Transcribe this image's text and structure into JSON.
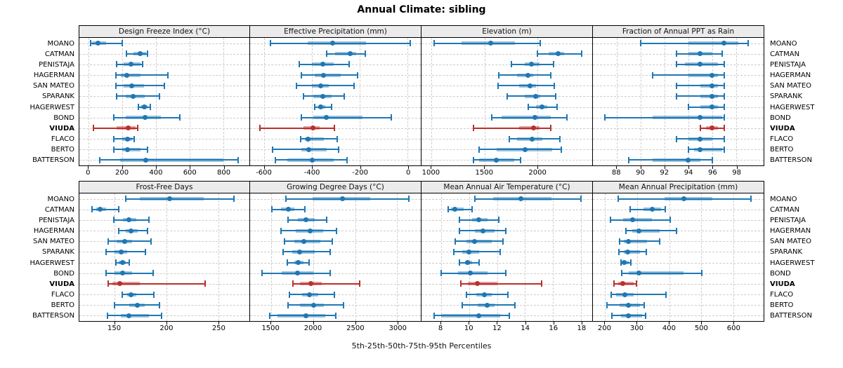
{
  "title": "Annual Climate: sibling",
  "caption": "5th-25th-50th-75th-95th Percentiles",
  "stations": [
    "MOANO",
    "CATMAN",
    "PENISTAJA",
    "HAGERMAN",
    "SAN MATEO",
    "SPARANK",
    "HAGERWEST",
    "BOND",
    "VIUDA",
    "FLACO",
    "BERTO",
    "BATTERSON"
  ],
  "highlight_station": "VIUDA",
  "colors": {
    "series_blue": "#1f77b4",
    "series_blue_band": "rgba(31,119,180,0.45)",
    "highlight_red": "#bb2f2c",
    "highlight_red_band": "rgba(187,47,44,0.45)",
    "grid": "#cdcdcd",
    "header_bg": "#ebebeb"
  },
  "chart_data": {
    "type": "percentile-dotplot-trellis",
    "percentile_levels": [
      5,
      25,
      50,
      75,
      95
    ],
    "panel_grid": [
      [
        0,
        1,
        2,
        3
      ],
      [
        4,
        5,
        6,
        7
      ]
    ],
    "panels": [
      {
        "title": "Design Freeze Index (°C)",
        "axis": {
          "min": -55,
          "max": 955,
          "ticks": [
            0,
            200,
            400,
            600,
            800
          ]
        },
        "values": [
          [
            10,
            20,
            55,
            105,
            200
          ],
          [
            225,
            265,
            305,
            340,
            350
          ],
          [
            165,
            210,
            250,
            310,
            320
          ],
          [
            160,
            190,
            225,
            310,
            470
          ],
          [
            160,
            210,
            255,
            330,
            450
          ],
          [
            165,
            220,
            265,
            335,
            420
          ],
          [
            295,
            310,
            330,
            350,
            365
          ],
          [
            150,
            220,
            335,
            430,
            540
          ],
          [
            30,
            165,
            235,
            280,
            290
          ],
          [
            150,
            200,
            230,
            260,
            270
          ],
          [
            150,
            200,
            230,
            310,
            350
          ],
          [
            65,
            185,
            340,
            800,
            890
          ]
        ]
      },
      {
        "title": "Effective Precipitation (mm)",
        "axis": {
          "min": -660,
          "max": 55,
          "ticks": [
            -600,
            -400,
            -200,
            0
          ]
        },
        "values": [
          [
            -575,
            -420,
            -315,
            -175,
            10
          ],
          [
            -340,
            -305,
            -242,
            -215,
            -178
          ],
          [
            -455,
            -400,
            -355,
            -310,
            -245
          ],
          [
            -445,
            -390,
            -353,
            -280,
            -210
          ],
          [
            -465,
            -400,
            -365,
            -330,
            -225
          ],
          [
            -435,
            -395,
            -355,
            -320,
            -265
          ],
          [
            -390,
            -375,
            -365,
            -345,
            -320
          ],
          [
            -445,
            -395,
            -340,
            -190,
            -70
          ],
          [
            -620,
            -435,
            -398,
            -370,
            -308
          ],
          [
            -447,
            -430,
            -418,
            -350,
            -295
          ],
          [
            -565,
            -445,
            -415,
            -340,
            -290
          ],
          [
            -553,
            -505,
            -400,
            -310,
            -255
          ]
        ]
      },
      {
        "title": "Elevation (m)",
        "axis": {
          "min": 905,
          "max": 2520,
          "ticks": [
            1000,
            1500,
            2000
          ]
        },
        "values": [
          [
            1025,
            1285,
            1560,
            1790,
            2030
          ],
          [
            2000,
            2105,
            2195,
            2255,
            2420
          ],
          [
            1755,
            1885,
            1945,
            2020,
            2155
          ],
          [
            1635,
            1810,
            1910,
            1960,
            2130
          ],
          [
            1630,
            1830,
            1935,
            1990,
            2160
          ],
          [
            1715,
            1885,
            1985,
            2030,
            2175
          ],
          [
            1915,
            1990,
            2045,
            2095,
            2185
          ],
          [
            1570,
            1660,
            1980,
            2130,
            2280
          ],
          [
            1400,
            1830,
            1965,
            2020,
            2130
          ],
          [
            1735,
            1810,
            1950,
            2045,
            2215
          ],
          [
            1450,
            1615,
            1885,
            2140,
            2225
          ],
          [
            1395,
            1450,
            1610,
            1780,
            1845
          ]
        ]
      },
      {
        "title": "Fraction of Annual PPT as Rain",
        "axis": {
          "min": 86.0,
          "max": 100.3,
          "ticks": [
            88,
            90,
            92,
            94,
            96,
            98
          ]
        },
        "values": [
          [
            90,
            94,
            97,
            98.2,
            99
          ],
          [
            93,
            94,
            95,
            96,
            96.8
          ],
          [
            93,
            93.7,
            95,
            96.5,
            97
          ],
          [
            91,
            94,
            96,
            96.5,
            97
          ],
          [
            93,
            95,
            96,
            96.5,
            97
          ],
          [
            93,
            95,
            96,
            96.5,
            97
          ],
          [
            94,
            95,
            96,
            96.5,
            97
          ],
          [
            87,
            91,
            95,
            96.8,
            97
          ],
          [
            95,
            95.5,
            96,
            96.5,
            97
          ],
          [
            93,
            94,
            95,
            96,
            97
          ],
          [
            94,
            94.5,
            95,
            96.8,
            97
          ],
          [
            89,
            91,
            94,
            95,
            96
          ]
        ]
      },
      {
        "title": "Frost-Free Days",
        "axis": {
          "min": 116,
          "max": 280,
          "ticks": [
            150,
            200,
            250
          ]
        },
        "values": [
          [
            161,
            174,
            203,
            236,
            265
          ],
          [
            128,
            132,
            136,
            142,
            154
          ],
          [
            149,
            158,
            164,
            171,
            183
          ],
          [
            154,
            161,
            166,
            172,
            182
          ],
          [
            144,
            152,
            160,
            167,
            185
          ],
          [
            142,
            150,
            156,
            162,
            180
          ],
          [
            151,
            154,
            158,
            161,
            164
          ],
          [
            142,
            150,
            158,
            167,
            187
          ],
          [
            144,
            148,
            155,
            174,
            237
          ],
          [
            157,
            162,
            166,
            171,
            188
          ],
          [
            150,
            164,
            172,
            179,
            193
          ],
          [
            143,
            156,
            164,
            183,
            195
          ]
        ]
      },
      {
        "title": "Growing Degree Days (°C)",
        "axis": {
          "min": 1250,
          "max": 3280,
          "ticks": [
            1500,
            2000,
            2500,
            3000
          ]
        },
        "values": [
          [
            1680,
            1990,
            2350,
            2680,
            3140
          ],
          [
            1510,
            1615,
            1705,
            1775,
            1905
          ],
          [
            1700,
            1815,
            1915,
            2020,
            2160
          ],
          [
            1620,
            1790,
            1965,
            2115,
            2280
          ],
          [
            1660,
            1775,
            1890,
            2085,
            2225
          ],
          [
            1640,
            1750,
            1840,
            2020,
            2200
          ],
          [
            1695,
            1775,
            1825,
            1885,
            1950
          ],
          [
            1390,
            1625,
            1815,
            2005,
            2200
          ],
          [
            1760,
            1840,
            1975,
            2100,
            2550
          ],
          [
            1720,
            1870,
            1955,
            2060,
            2250
          ],
          [
            1700,
            1845,
            2010,
            2130,
            2360
          ],
          [
            1480,
            1575,
            1910,
            2140,
            2270
          ]
        ]
      },
      {
        "title": "Mean Annual Air Temperature (°C)",
        "axis": {
          "min": 6.6,
          "max": 18.8,
          "ticks": [
            8,
            10,
            12,
            14,
            16,
            18
          ]
        },
        "values": [
          [
            10.4,
            11.7,
            13.7,
            15.9,
            18.0
          ],
          [
            8.5,
            8.7,
            9.0,
            9.6,
            10.2
          ],
          [
            9.3,
            10.2,
            10.7,
            11.3,
            12.1
          ],
          [
            9.3,
            10.4,
            11.0,
            11.8,
            12.6
          ],
          [
            9.0,
            9.8,
            10.4,
            11.6,
            12.4
          ],
          [
            8.9,
            9.5,
            10.0,
            10.7,
            12.2
          ],
          [
            9.3,
            9.7,
            9.9,
            10.2,
            10.7
          ],
          [
            8.0,
            9.2,
            10.1,
            11.3,
            12.6
          ],
          [
            9.4,
            9.9,
            10.6,
            12.0,
            15.2
          ],
          [
            9.8,
            10.5,
            11.1,
            11.6,
            12.8
          ],
          [
            9.5,
            10.6,
            11.3,
            11.8,
            13.3
          ],
          [
            7.5,
            8.0,
            10.7,
            12.2,
            12.9
          ]
        ]
      },
      {
        "title": "Mean Annual Precipitation (mm)",
        "axis": {
          "min": 162,
          "max": 695,
          "ticks": [
            200,
            300,
            400,
            500,
            600
          ]
        },
        "values": [
          [
            240,
            385,
            445,
            535,
            655
          ],
          [
            279,
            319,
            347,
            375,
            389
          ],
          [
            216,
            256,
            286,
            347,
            403
          ],
          [
            264,
            284,
            305,
            370,
            422
          ],
          [
            245,
            259,
            272,
            330,
            370
          ],
          [
            244,
            259,
            270,
            308,
            329
          ],
          [
            249,
            252,
            259,
            273,
            280
          ],
          [
            252,
            273,
            306,
            445,
            502
          ],
          [
            228,
            242,
            256,
            290,
            299
          ],
          [
            218,
            235,
            262,
            290,
            390
          ],
          [
            205,
            245,
            272,
            310,
            322
          ],
          [
            221,
            249,
            273,
            315,
            326
          ]
        ]
      }
    ]
  }
}
